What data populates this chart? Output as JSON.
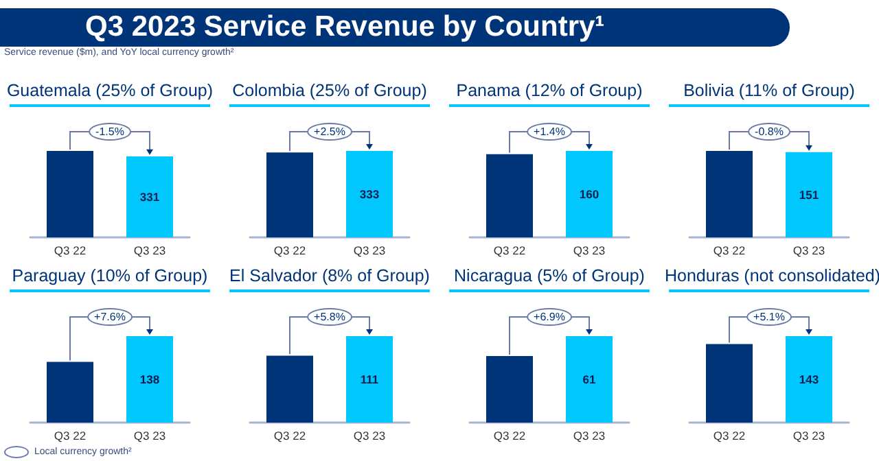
{
  "chart_data": [
    {
      "type": "other",
      "title": "Q3 2023 Service Revenue by Country¹",
      "subtitle": "Service revenue ($m), and YoY local currency growth²",
      "annotations": [
        "Local currency growth²"
      ]
    },
    {
      "type": "bar",
      "title": "Guatemala (25% of Group)",
      "categories": [
        "Q3 22",
        "Q3 23"
      ],
      "values": [
        353,
        331
      ],
      "colors": [
        "#003478",
        "#00c8ff"
      ],
      "value_labels": [
        null,
        "331"
      ],
      "annotations": [
        "-1.5%"
      ]
    },
    {
      "type": "bar",
      "title": "Colombia (25% of Group)",
      "categories": [
        "Q3 22",
        "Q3 23"
      ],
      "values": [
        327,
        333
      ],
      "colors": [
        "#003478",
        "#00c8ff"
      ],
      "value_labels": [
        null,
        "333"
      ],
      "annotations": [
        "+2.5%"
      ]
    },
    {
      "type": "bar",
      "title": "Panama (12% of Group)",
      "categories": [
        "Q3 22",
        "Q3 23"
      ],
      "values": [
        154,
        160
      ],
      "colors": [
        "#003478",
        "#00c8ff"
      ],
      "value_labels": [
        null,
        "160"
      ],
      "annotations": [
        "+1.4%"
      ]
    },
    {
      "type": "bar",
      "title": "Bolivia (11% of Group)",
      "categories": [
        "Q3 22",
        "Q3 23"
      ],
      "values": [
        153,
        151
      ],
      "colors": [
        "#003478",
        "#00c8ff"
      ],
      "value_labels": [
        null,
        "151"
      ],
      "annotations": [
        "-0.8%"
      ]
    },
    {
      "type": "bar",
      "title": "Paraguay (10% of Group)",
      "categories": [
        "Q3 22",
        "Q3 23"
      ],
      "values": [
        97,
        138
      ],
      "colors": [
        "#003478",
        "#00c8ff"
      ],
      "value_labels": [
        null,
        "138"
      ],
      "annotations": [
        "+7.6%"
      ]
    },
    {
      "type": "bar",
      "title": "El Salvador (8% of Group)",
      "categories": [
        "Q3 22",
        "Q3 23"
      ],
      "values": [
        86,
        111
      ],
      "colors": [
        "#003478",
        "#00c8ff"
      ],
      "value_labels": [
        null,
        "111"
      ],
      "annotations": [
        "+5.8%"
      ]
    },
    {
      "type": "bar",
      "title": "Nicaragua (5% of Group)",
      "categories": [
        "Q3 22",
        "Q3 23"
      ],
      "values": [
        47,
        61
      ],
      "colors": [
        "#003478",
        "#00c8ff"
      ],
      "value_labels": [
        null,
        "61"
      ],
      "annotations": [
        "+6.9%"
      ]
    },
    {
      "type": "bar",
      "title": "Honduras (not consolidated)",
      "categories": [
        "Q3 22",
        "Q3 23"
      ],
      "values": [
        130,
        143
      ],
      "colors": [
        "#003478",
        "#00c8ff"
      ],
      "value_labels": [
        null,
        "143"
      ],
      "annotations": [
        "+5.1%"
      ]
    }
  ]
}
